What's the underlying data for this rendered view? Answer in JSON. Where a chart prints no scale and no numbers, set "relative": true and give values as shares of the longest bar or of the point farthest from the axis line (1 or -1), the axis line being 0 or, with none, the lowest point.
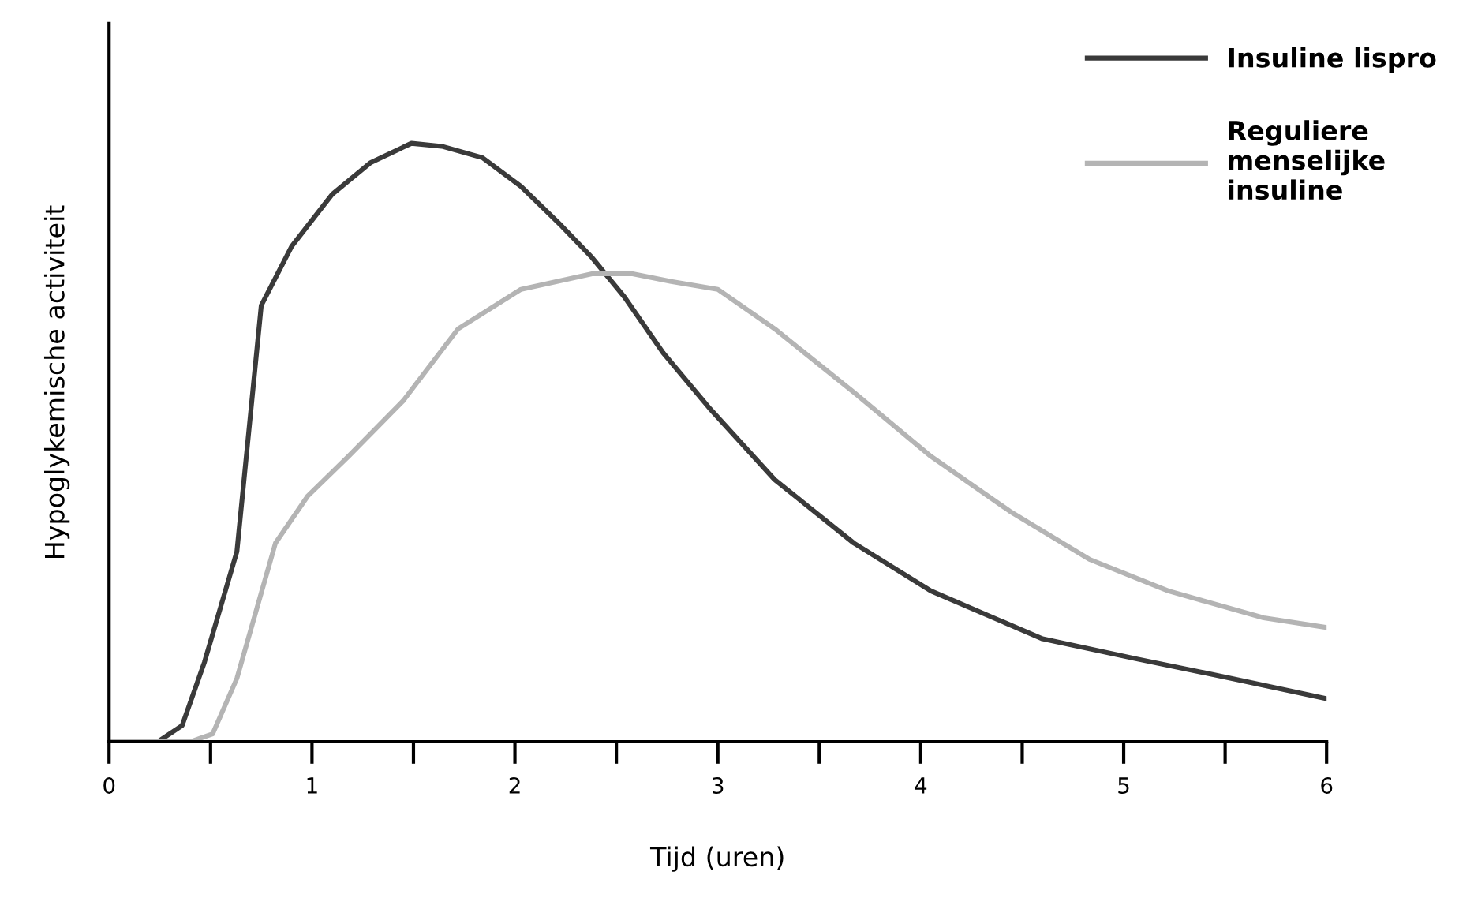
{
  "chart_data": {
    "type": "line",
    "relative": true,
    "xlabel": "Tijd (uren)",
    "ylabel": "Hypoglykemische activiteit",
    "xlim": [
      0,
      6
    ],
    "xticks": [
      0,
      {
        "value": 0.5,
        "label": null
      },
      1,
      {
        "value": 1.5,
        "label": null
      },
      2,
      {
        "value": 2.5,
        "label": null
      },
      3,
      {
        "value": 3.5,
        "label": null
      },
      4,
      {
        "value": 4.5,
        "label": null
      },
      5,
      {
        "value": 5.5,
        "label": null
      },
      6
    ],
    "grid": false,
    "legend": "top right",
    "marker": "none",
    "line_style": "solid",
    "series": [
      {
        "name": "Insuline lispro",
        "color": "#3a3a3a",
        "x": [
          0,
          0.24,
          0.36,
          0.47,
          0.63,
          0.75,
          0.9,
          1.1,
          1.29,
          1.49,
          1.64,
          1.84,
          2.03,
          2.23,
          2.38,
          2.54,
          2.73,
          2.96,
          3.28,
          3.67,
          4.05,
          4.6,
          5.07,
          5.53,
          6.0
        ],
        "values": [
          0,
          0,
          0.027,
          0.133,
          0.318,
          0.729,
          0.828,
          0.915,
          0.968,
          1.0,
          0.995,
          0.976,
          0.928,
          0.862,
          0.809,
          0.743,
          0.65,
          0.557,
          0.438,
          0.332,
          0.252,
          0.172,
          0.138,
          0.106,
          0.072
        ]
      },
      {
        "name": "Reguliere\nmenselijke\ninsuline",
        "color": "#b4b4b4",
        "x": [
          0,
          0.4,
          0.51,
          0.63,
          0.82,
          0.98,
          1.18,
          1.45,
          1.72,
          2.03,
          2.38,
          2.58,
          2.77,
          3.0,
          3.28,
          3.67,
          4.05,
          4.44,
          4.83,
          5.22,
          5.69,
          6.0
        ],
        "values": [
          0,
          0,
          0.013,
          0.106,
          0.332,
          0.411,
          0.477,
          0.57,
          0.69,
          0.756,
          0.782,
          0.782,
          0.769,
          0.756,
          0.69,
          0.584,
          0.477,
          0.385,
          0.305,
          0.252,
          0.207,
          0.191
        ]
      }
    ]
  }
}
